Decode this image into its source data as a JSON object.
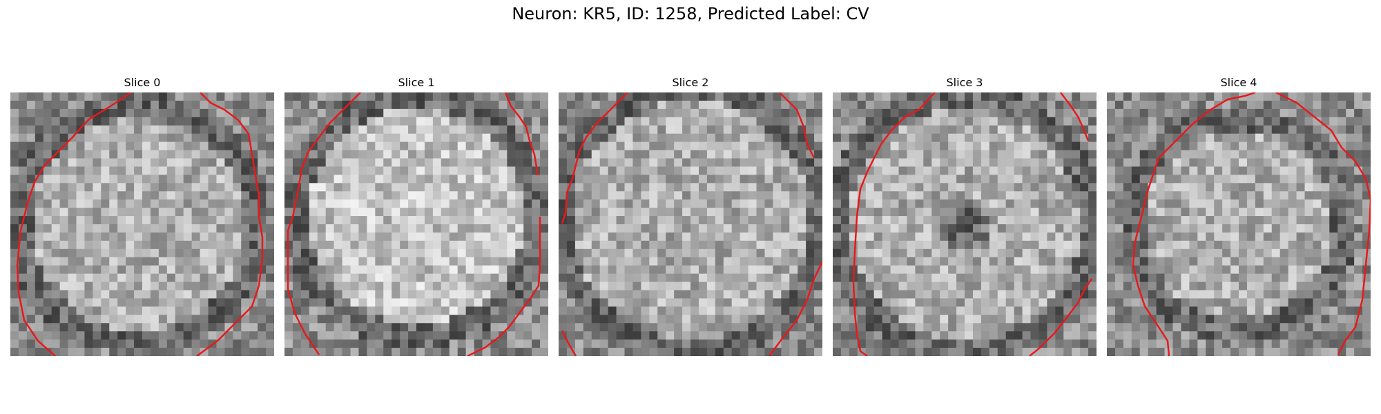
{
  "figure": {
    "title": "Neuron: KR5, ID: 1258, Predicted Label: CV"
  },
  "panels": [
    {
      "title": "Slice 0"
    },
    {
      "title": "Slice 1"
    },
    {
      "title": "Slice 2"
    },
    {
      "title": "Slice 3"
    },
    {
      "title": "Slice 4"
    }
  ],
  "colors": {
    "contour": "#e8191c",
    "background": "#ffffff"
  }
}
